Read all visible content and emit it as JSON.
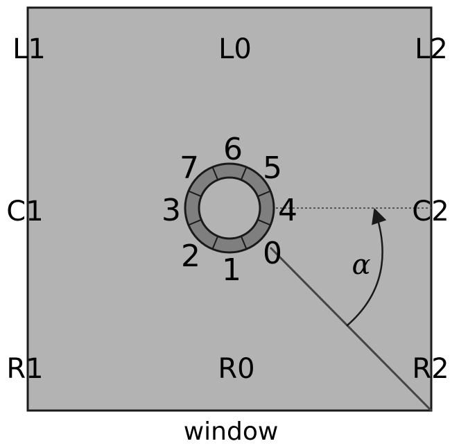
{
  "diagram": {
    "caption": "window",
    "positions": {
      "L1": "L1",
      "L0": "L0",
      "L2": "L2",
      "C1": "C1",
      "C2": "C2",
      "R1": "R1",
      "R0": "R0",
      "R2": "R2"
    },
    "ring_labels": [
      "0",
      "1",
      "2",
      "3",
      "4",
      "5",
      "6",
      "7"
    ],
    "angle_label": "α",
    "colors": {
      "window_fill": "#b3b3b3",
      "ring_fill": "#7f7f7f",
      "stroke": "#1a1a1a",
      "line": "#404040"
    }
  }
}
